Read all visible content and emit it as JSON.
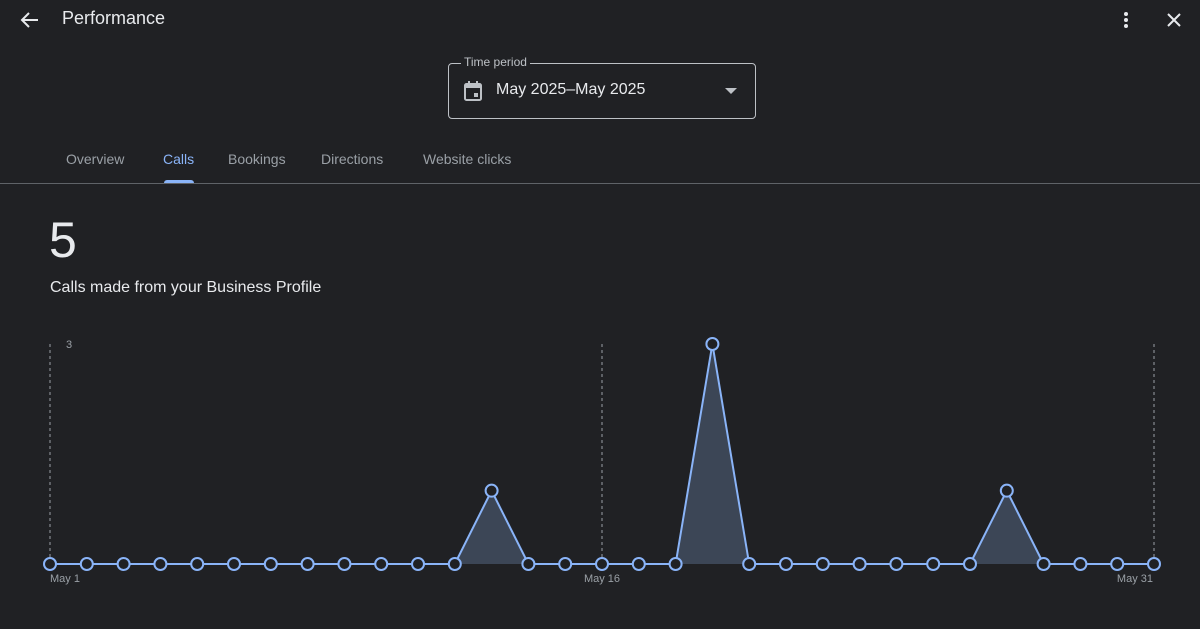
{
  "header": {
    "title": "Performance",
    "back_icon": "arrow-back-icon",
    "more_icon": "more-vert-icon",
    "close_icon": "close-icon"
  },
  "time_period": {
    "label": "Time period",
    "value": "May 2025–May 2025",
    "calendar_icon": "calendar-icon",
    "dropdown_icon": "arrow-drop-down-icon"
  },
  "tabs": [
    {
      "label": "Overview",
      "active": false
    },
    {
      "label": "Calls",
      "active": true
    },
    {
      "label": "Bookings",
      "active": false
    },
    {
      "label": "Directions",
      "active": false
    },
    {
      "label": "Website clicks",
      "active": false
    }
  ],
  "summary": {
    "total": "5",
    "caption": "Calls made from your Business Profile"
  },
  "colors": {
    "background": "#202124",
    "accent": "#8ab4f8",
    "area_fill": "#3c4656",
    "text_primary": "#e8eaed",
    "text_secondary": "#9aa0a6"
  },
  "chart_data": {
    "type": "area",
    "x": [
      "May 1",
      "May 2",
      "May 3",
      "May 4",
      "May 5",
      "May 6",
      "May 7",
      "May 8",
      "May 9",
      "May 10",
      "May 11",
      "May 12",
      "May 13",
      "May 14",
      "May 15",
      "May 16",
      "May 17",
      "May 18",
      "May 19",
      "May 20",
      "May 21",
      "May 22",
      "May 23",
      "May 24",
      "May 25",
      "May 26",
      "May 27",
      "May 28",
      "May 29",
      "May 30",
      "May 31"
    ],
    "values": [
      0,
      0,
      0,
      0,
      0,
      0,
      0,
      0,
      0,
      0,
      0,
      0,
      1,
      0,
      0,
      0,
      0,
      0,
      3,
      0,
      0,
      0,
      0,
      0,
      0,
      0,
      1,
      0,
      0,
      0,
      0
    ],
    "ylim": [
      0,
      3
    ],
    "y_ticks": [
      3
    ],
    "x_tick_labels": [
      "May 1",
      "May 16",
      "May 31"
    ],
    "grid": "vertical dashed at labeled dates"
  }
}
